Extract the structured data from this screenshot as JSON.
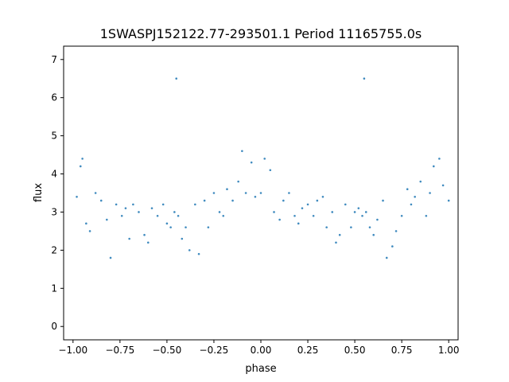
{
  "chart_data": {
    "type": "scatter",
    "title": "1SWASPJ152122.77-293501.1 Period 11165755.0s",
    "xlabel": "phase",
    "ylabel": "flux",
    "xlim": [
      -1.05,
      1.05
    ],
    "ylim": [
      -0.35,
      7.35
    ],
    "x_ticks": [
      -1.0,
      -0.75,
      -0.5,
      -0.25,
      0.0,
      0.25,
      0.5,
      0.75,
      1.0
    ],
    "x_tick_labels": [
      "−1.00",
      "−0.75",
      "−0.50",
      "−0.25",
      "0.00",
      "0.25",
      "0.50",
      "0.75",
      "1.00"
    ],
    "y_ticks": [
      0,
      1,
      2,
      3,
      4,
      5,
      6,
      7
    ],
    "y_tick_labels": [
      "0",
      "1",
      "2",
      "3",
      "4",
      "5",
      "6",
      "7"
    ],
    "grid": false,
    "legend": "none",
    "color": "#1f77b4",
    "series": [
      {
        "x": [
          -0.98,
          -0.96,
          -0.95,
          -0.93,
          -0.91,
          -0.88,
          -0.85,
          -0.82,
          -0.8,
          -0.77,
          -0.74,
          -0.72,
          -0.7,
          -0.68,
          -0.65,
          -0.62,
          -0.6,
          -0.58,
          -0.55,
          -0.52,
          -0.5,
          -0.48,
          -0.46,
          -0.45,
          -0.44,
          -0.42,
          -0.4,
          -0.38,
          -0.35,
          -0.33,
          -0.3,
          -0.28,
          -0.25,
          -0.22,
          -0.2,
          -0.18,
          -0.15,
          -0.12,
          -0.1,
          -0.08,
          -0.05,
          -0.03,
          0.0,
          0.02,
          0.05,
          0.07,
          0.1,
          0.12,
          0.15,
          0.18,
          0.2,
          0.22,
          0.25,
          0.28,
          0.3,
          0.33,
          0.35,
          0.38,
          0.4,
          0.42,
          0.45,
          0.48,
          0.5,
          0.52,
          0.54,
          0.55,
          0.56,
          0.58,
          0.6,
          0.62,
          0.65,
          0.67,
          0.7,
          0.72,
          0.75,
          0.78,
          0.8,
          0.82,
          0.85,
          0.88,
          0.9,
          0.92,
          0.95,
          0.97,
          1.0
        ],
        "y": [
          3.4,
          4.2,
          4.4,
          2.7,
          2.5,
          3.5,
          3.3,
          2.8,
          1.8,
          3.2,
          2.9,
          3.1,
          2.3,
          3.2,
          3.0,
          2.4,
          2.2,
          3.1,
          2.9,
          3.2,
          2.7,
          2.6,
          3.0,
          6.5,
          2.9,
          2.3,
          2.6,
          2.0,
          3.2,
          1.9,
          3.3,
          2.6,
          3.5,
          3.0,
          2.9,
          3.6,
          3.3,
          3.8,
          4.6,
          3.5,
          4.3,
          3.4,
          3.5,
          4.4,
          4.1,
          3.0,
          2.8,
          3.3,
          3.5,
          2.9,
          2.7,
          3.1,
          3.2,
          2.9,
          3.3,
          3.4,
          2.6,
          3.0,
          2.2,
          2.4,
          3.2,
          2.6,
          3.0,
          3.1,
          2.9,
          6.5,
          3.0,
          2.6,
          2.4,
          2.8,
          3.3,
          1.8,
          2.1,
          2.5,
          2.9,
          3.6,
          3.2,
          3.4,
          3.8,
          2.9,
          3.5,
          4.2,
          4.4,
          3.7,
          3.3
        ]
      }
    ]
  }
}
